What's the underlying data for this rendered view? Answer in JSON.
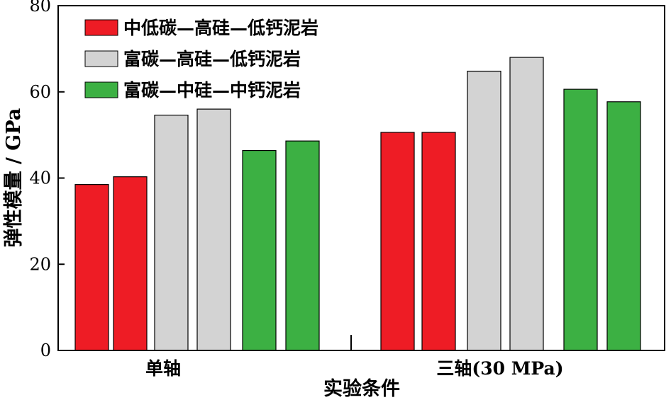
{
  "chart_data": {
    "type": "bar",
    "xlabel": "实验条件",
    "ylabel": "弹性模量 / GPa",
    "ylim": [
      0,
      80
    ],
    "yticks": [
      0,
      20,
      40,
      60,
      80
    ],
    "grid": false,
    "legend_position": "top-left",
    "categories": [
      "单轴",
      "三轴(30 MPa)"
    ],
    "series": [
      {
        "name": "中低碳—高硅—低钙泥岩",
        "color": "#ee1c25",
        "values": [
          [
            38.5,
            40.3
          ],
          [
            50.6,
            50.6
          ]
        ]
      },
      {
        "name": "富碳—高硅—低钙泥岩",
        "color": "#d3d3d3",
        "values": [
          [
            54.6,
            56.0
          ],
          [
            64.8,
            68.0
          ]
        ]
      },
      {
        "name": "富碳—中硅—中钙泥岩",
        "color": "#3cb043",
        "values": [
          [
            46.4,
            48.6
          ],
          [
            60.6,
            57.7
          ]
        ]
      }
    ]
  }
}
